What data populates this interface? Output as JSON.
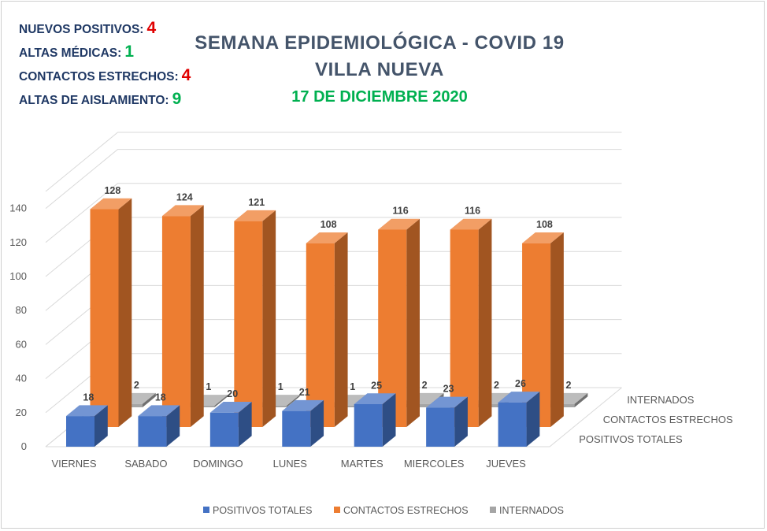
{
  "stats": [
    {
      "label": "NUEVOS POSITIVOS:",
      "value": "4",
      "color": "#e00000"
    },
    {
      "label": "ALTAS MÉDICAS:",
      "value": "1",
      "color": "#00b050"
    },
    {
      "label": "CONTACTOS ESTRECHOS:",
      "value": "4",
      "color": "#e00000"
    },
    {
      "label": "ALTAS DE AISLAMIENTO:",
      "value": "9",
      "color": "#00b050"
    }
  ],
  "header": {
    "title_line1": "SEMANA EPIDEMIOLÓGICA - COVID 19",
    "title_line2": "VILLA NUEVA",
    "date": "17 DE DICIEMBRE 2020"
  },
  "chart_data": {
    "type": "bar",
    "categories": [
      "VIERNES",
      "SABADO",
      "DOMINGO",
      "LUNES",
      "MARTES",
      "MIERCOLES",
      "JUEVES"
    ],
    "series": [
      {
        "name": "POSITIVOS TOTALES",
        "values": [
          18,
          18,
          20,
          21,
          25,
          23,
          26
        ],
        "color": "#4472c4"
      },
      {
        "name": "CONTACTOS ESTRECHOS",
        "values": [
          128,
          124,
          121,
          108,
          116,
          116,
          108
        ],
        "color": "#ed7d31"
      },
      {
        "name": "INTERNADOS",
        "values": [
          2,
          1,
          1,
          1,
          2,
          2,
          2
        ],
        "color": "#a5a5a5"
      }
    ],
    "yticks": [
      0,
      20,
      40,
      60,
      80,
      100,
      120,
      140
    ],
    "ylim": [
      0,
      150
    ],
    "grid": true,
    "legend": "bottom",
    "three_d": true
  }
}
